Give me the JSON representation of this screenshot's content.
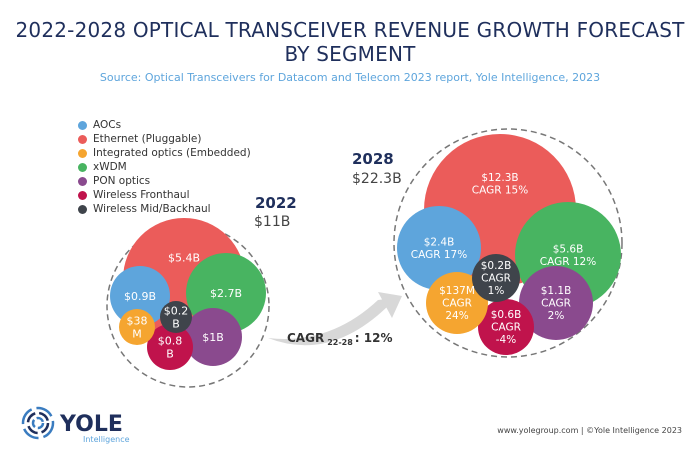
{
  "title_line1": "2022-2028 OPTICAL TRANSCEIVER REVENUE GROWTH FORECAST",
  "title_line2": "BY SEGMENT",
  "source": "Source: Optical Transceivers for Datacom and Telecom 2023 report, Yole Intelligence, 2023",
  "legend": [
    {
      "label": "AOCs",
      "color": "#5ea5dc"
    },
    {
      "label": "Ethernet (Pluggable)",
      "color": "#eb5c5a"
    },
    {
      "label": "Integrated optics (Embedded)",
      "color": "#f5a530"
    },
    {
      "label": "xWDM",
      "color": "#48b461"
    },
    {
      "label": "PON optics",
      "color": "#8a4a8e"
    },
    {
      "label": "Wireless Fronthaul",
      "color": "#c0134c"
    },
    {
      "label": "Wireless Mid/Backhaul",
      "color": "#3f444b"
    }
  ],
  "y2022": {
    "year": "2022",
    "total": "$11B",
    "bubbles": [
      {
        "segment": "Ethernet (Pluggable)",
        "lines": [
          "$5.4B"
        ]
      },
      {
        "segment": "AOCs",
        "lines": [
          "$0.9B"
        ]
      },
      {
        "segment": "xWDM",
        "lines": [
          "$2.7B"
        ]
      },
      {
        "segment": "PON optics",
        "lines": [
          "$1B"
        ]
      },
      {
        "segment": "Wireless Fronthaul",
        "lines": [
          "$0.8",
          "B"
        ]
      },
      {
        "segment": "Integrated optics (Embedded)",
        "lines": [
          "$38",
          "M"
        ]
      },
      {
        "segment": "Wireless Mid/Backhaul",
        "lines": [
          "$0.2",
          "B"
        ]
      }
    ]
  },
  "y2028": {
    "year": "2028",
    "total": "$22.3B",
    "bubbles": [
      {
        "segment": "Ethernet (Pluggable)",
        "lines": [
          "$12.3B",
          "CAGR 15%"
        ]
      },
      {
        "segment": "AOCs",
        "lines": [
          "$2.4B",
          "CAGR 17%"
        ]
      },
      {
        "segment": "xWDM",
        "lines": [
          "$5.6B",
          "CAGR 12%"
        ]
      },
      {
        "segment": "PON optics",
        "lines": [
          "$1.1B",
          "CAGR",
          "2%"
        ]
      },
      {
        "segment": "Wireless Fronthaul",
        "lines": [
          "$0.6B",
          "CAGR",
          "-4%"
        ]
      },
      {
        "segment": "Integrated optics (Embedded)",
        "lines": [
          "$137M",
          "CAGR",
          "24%"
        ]
      },
      {
        "segment": "Wireless Mid/Backhaul",
        "lines": [
          "$0.2B",
          "CAGR",
          "1%"
        ]
      }
    ]
  },
  "cagr": {
    "label": "CAGR",
    "sub": "22-28",
    "value": ": 12%"
  },
  "logo": {
    "name": "YOLE",
    "sub": "Intelligence"
  },
  "footer": "www.yolegroup.com | ©Yole Intelligence 2023"
}
